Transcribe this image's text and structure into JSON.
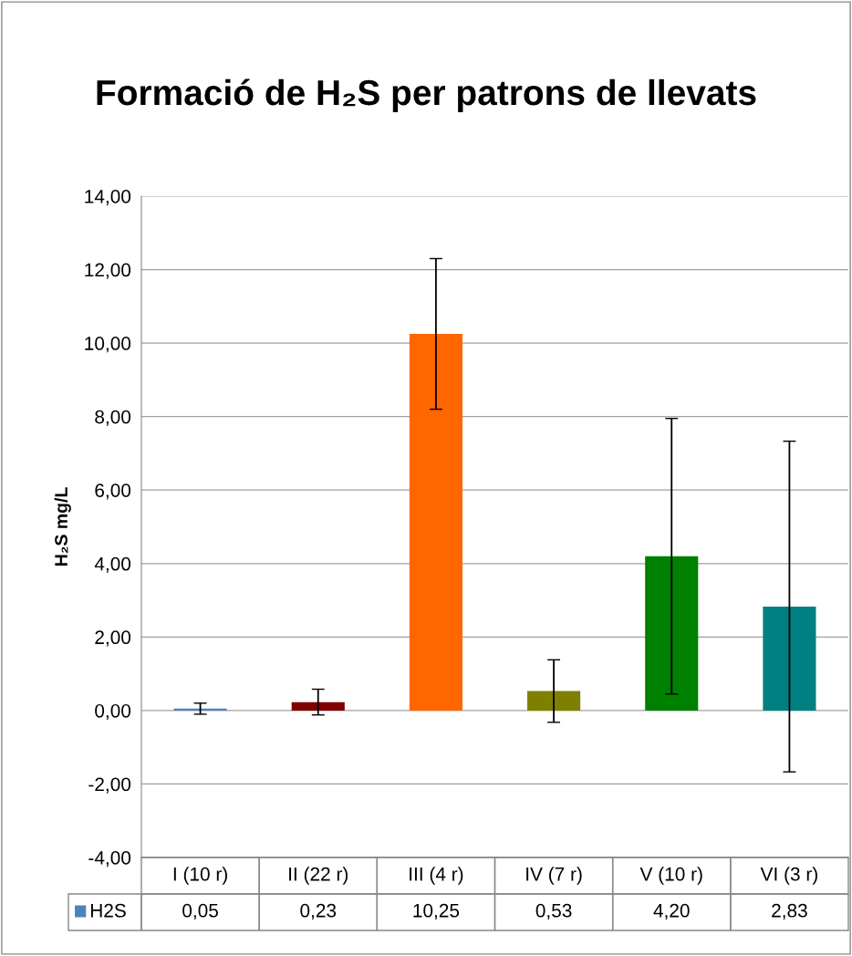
{
  "chart_data": {
    "type": "bar",
    "title": "Formació de H₂S per patrons de llevats",
    "ylabel": "H₂S mg/L",
    "categories": [
      "I (10 r)",
      "II (22 r)",
      "III (4 r)",
      "IV (7 r)",
      "V (10 r)",
      "VI (3 r)"
    ],
    "series": [
      {
        "name": "H2S",
        "color": "#4f81bd",
        "colors": [
          "#4f81bd",
          "#800000",
          "#ff6600",
          "#808000",
          "#008000",
          "#008080"
        ],
        "values": [
          0.05,
          0.23,
          10.25,
          0.53,
          4.2,
          2.83
        ],
        "errors": [
          0.15,
          0.35,
          2.05,
          0.85,
          3.75,
          4.5
        ],
        "value_labels": [
          "0,05",
          "0,23",
          "10,25",
          "0,53",
          "4,20",
          "2,83"
        ]
      }
    ],
    "ylim": [
      -4,
      14
    ],
    "yticks": [
      {
        "value": -4,
        "label": "-4,00"
      },
      {
        "value": -2,
        "label": "-2,00"
      },
      {
        "value": 0,
        "label": "0,00"
      },
      {
        "value": 2,
        "label": "2,00"
      },
      {
        "value": 4,
        "label": "4,00"
      },
      {
        "value": 6,
        "label": "6,00"
      },
      {
        "value": 8,
        "label": "8,00"
      },
      {
        "value": 10,
        "label": "10,00"
      },
      {
        "value": 12,
        "label": "12,00"
      },
      {
        "value": 14,
        "label": "14,00"
      }
    ],
    "grid": "y",
    "legend": "bottom"
  }
}
